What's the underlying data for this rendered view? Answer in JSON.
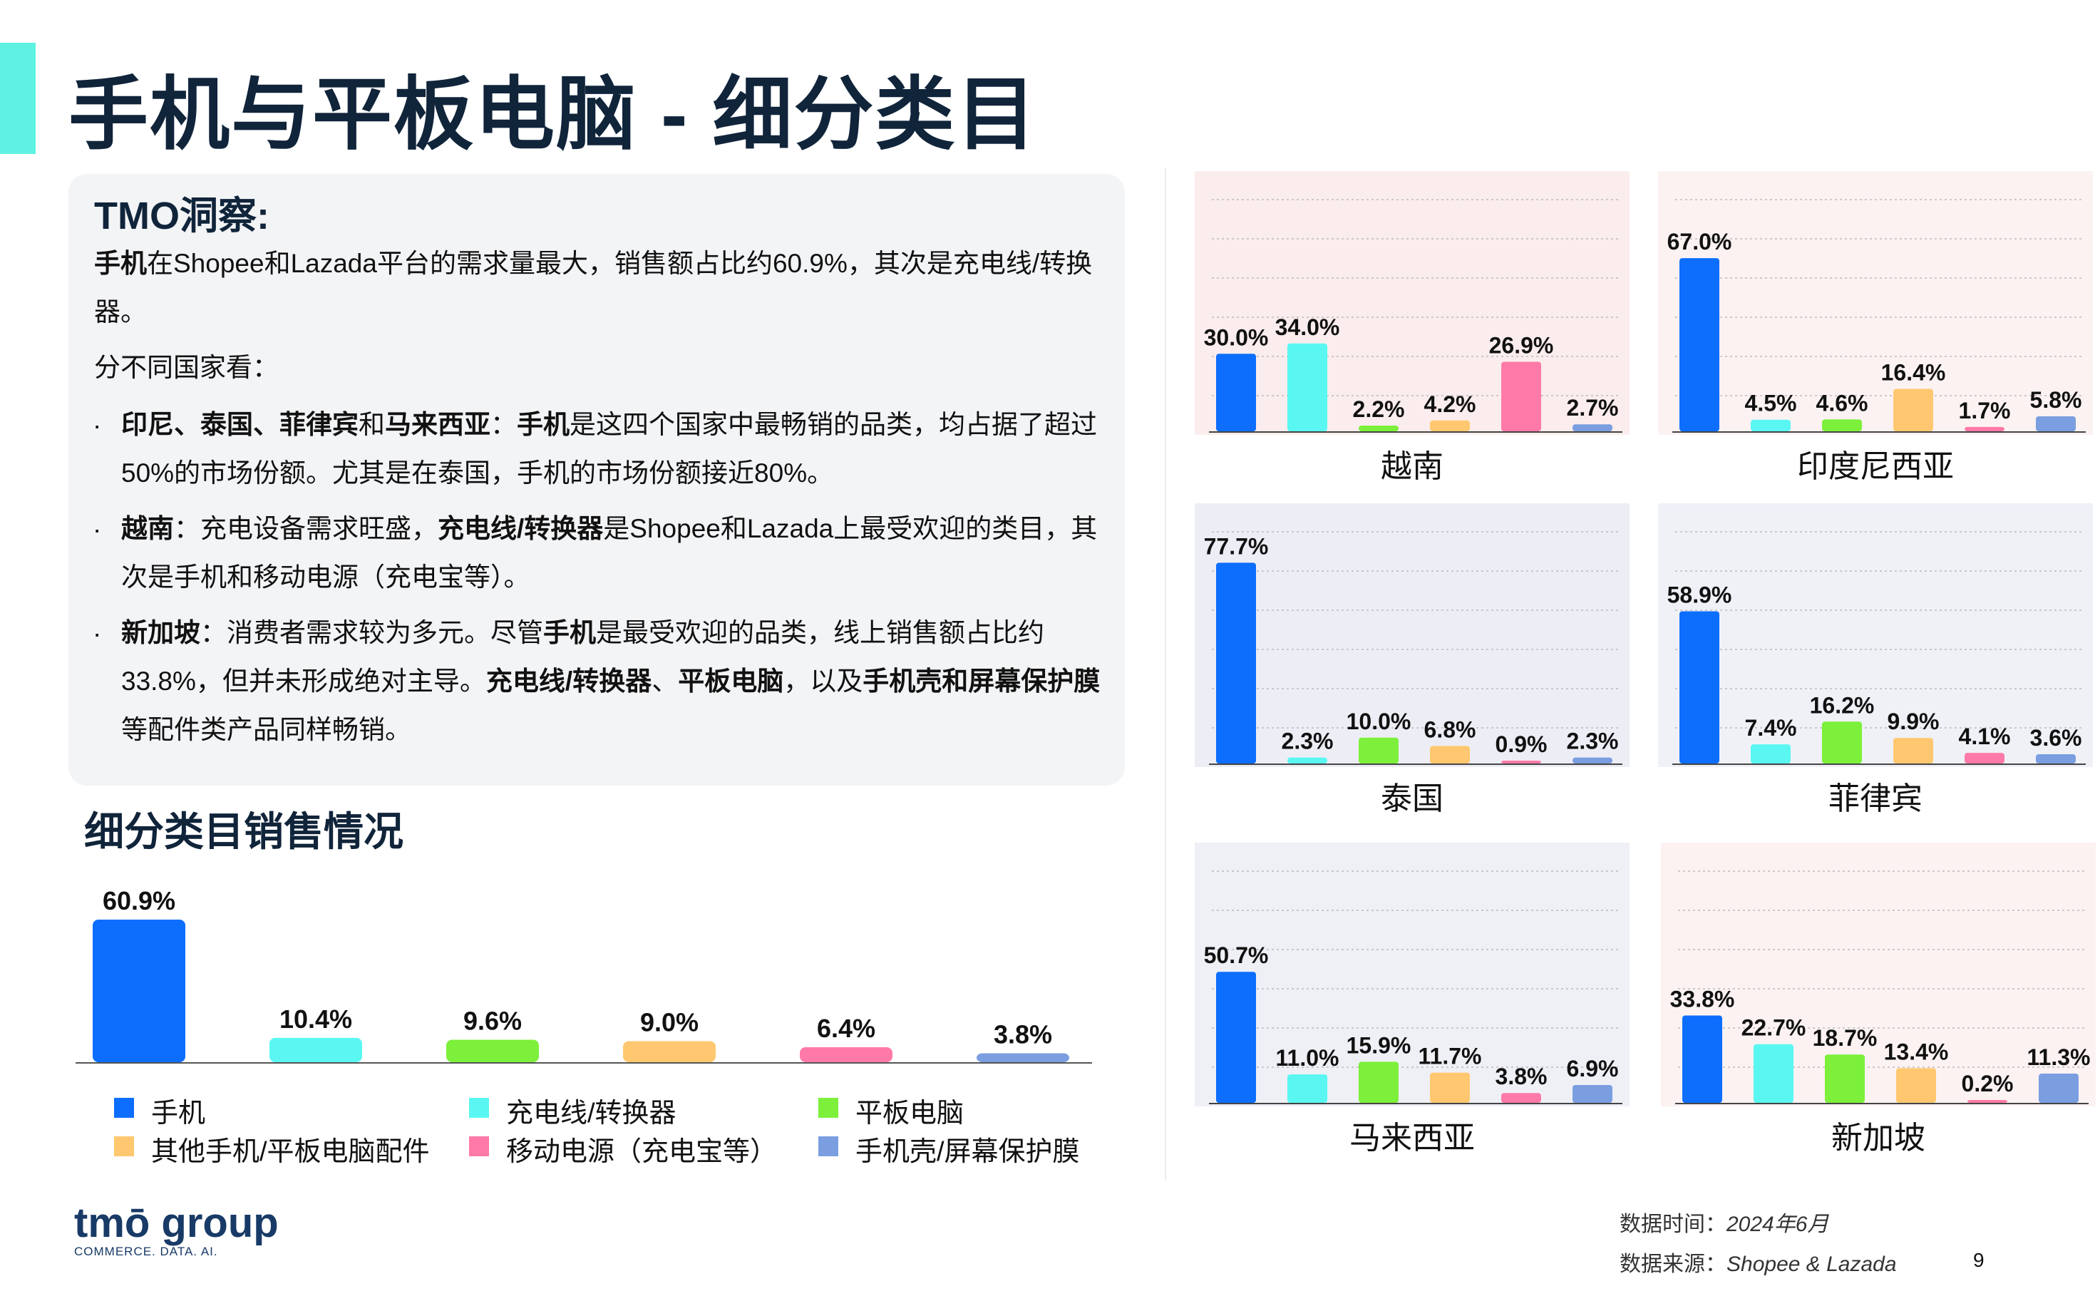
{
  "title": "手机与平板电脑 - 细分类目",
  "insight": {
    "heading": "TMO洞察:",
    "intro_bold": "手机",
    "intro_rest": "在Shopee和Lazada平台的需求量最大，销售额占比约60.9%，其次是充电线/转换器。",
    "by_country": "分不同国家看：",
    "bullets": [
      {
        "lead": "印尼、泰国、菲律宾",
        "mid1": "和",
        "lead2": "马来西亚",
        "sep": "：",
        "key": "手机",
        "rest": "是这四个国家中最畅销的品类，均占据了超过50%的市场份额。尤其是在泰国，手机的市场份额接近80%。"
      },
      {
        "lead": "越南",
        "sep": "：充电设备需求旺盛，",
        "key": "充电线/转换器",
        "rest": "是Shopee和Lazada上最受欢迎的类目，其次是手机和移动电源（充电宝等）。"
      },
      {
        "lead": "新加坡",
        "sep": "：消费者需求较为多元。尽管",
        "key": "手机",
        "mid": "是最受欢迎的品类，线上销售额占比约33.8%，但并未形成绝对主导。",
        "key2": "充电线/转换器",
        "sep2": "、",
        "key3": "平板电脑",
        "mid2": "，以及",
        "key4": "手机壳和屏幕保护膜",
        "rest": "等配件类产品同样畅销。"
      }
    ]
  },
  "section_title": "细分类目销售情况",
  "legend": [
    {
      "label": "手机",
      "color": "#0d6efd"
    },
    {
      "label": "充电线/转换器",
      "color": "#5af7f2"
    },
    {
      "label": "平板电脑",
      "color": "#7cf03a"
    },
    {
      "label": "其他手机/平板电脑配件",
      "color": "#ffc870"
    },
    {
      "label": "移动电源（充电宝等）",
      "color": "#ff7aa8"
    },
    {
      "label": "手机壳/屏幕保护膜",
      "color": "#7a9ee0"
    }
  ],
  "chart_data": [
    {
      "type": "bar",
      "name": "总体",
      "categories": [
        "手机",
        "充电线/转换器",
        "平板电脑",
        "其他手机/平板电脑配件",
        "移动电源（充电宝等）",
        "手机壳/屏幕保护膜"
      ],
      "values": [
        60.9,
        10.4,
        9.6,
        9.0,
        6.4,
        3.8
      ],
      "labels": [
        "60.9%",
        "10.4%",
        "9.6%",
        "9.0%",
        "6.4%",
        "3.8%"
      ]
    },
    {
      "type": "bar",
      "country": "越南",
      "categories": [
        "手机",
        "充电线/转换器",
        "平板电脑",
        "其他手机/平板电脑配件",
        "移动电源（充电宝等）",
        "手机壳/屏幕保护膜"
      ],
      "values": [
        30.0,
        34.0,
        2.2,
        4.2,
        26.9,
        2.7
      ],
      "labels": [
        "30.0%",
        "34.0%",
        "2.2%",
        "4.2%",
        "26.9%",
        "2.7%"
      ]
    },
    {
      "type": "bar",
      "country": "印度尼西亚",
      "categories": [
        "手机",
        "充电线/转换器",
        "平板电脑",
        "其他手机/平板电脑配件",
        "移动电源（充电宝等）",
        "手机壳/屏幕保护膜"
      ],
      "values": [
        67.0,
        4.5,
        4.6,
        16.4,
        1.7,
        5.8
      ],
      "labels": [
        "67.0%",
        "4.5%",
        "4.6%",
        "16.4%",
        "1.7%",
        "5.8%"
      ]
    },
    {
      "type": "bar",
      "country": "泰国",
      "categories": [
        "手机",
        "充电线/转换器",
        "平板电脑",
        "其他手机/平板电脑配件",
        "移动电源（充电宝等）",
        "手机壳/屏幕保护膜"
      ],
      "values": [
        77.7,
        2.3,
        10.0,
        6.8,
        0.9,
        2.3
      ],
      "labels": [
        "77.7%",
        "2.3%",
        "10.0%",
        "6.8%",
        "0.9%",
        "2.3%"
      ]
    },
    {
      "type": "bar",
      "country": "菲律宾",
      "categories": [
        "手机",
        "充电线/转换器",
        "平板电脑",
        "其他手机/平板电脑配件",
        "移动电源（充电宝等）",
        "手机壳/屏幕保护膜"
      ],
      "values": [
        58.9,
        7.4,
        16.2,
        9.9,
        4.1,
        3.6
      ],
      "labels": [
        "58.9%",
        "7.4%",
        "16.2%",
        "9.9%",
        "4.1%",
        "3.6%"
      ]
    },
    {
      "type": "bar",
      "country": "马来西亚",
      "categories": [
        "手机",
        "充电线/转换器",
        "平板电脑",
        "其他手机/平板电脑配件",
        "移动电源（充电宝等）",
        "手机壳/屏幕保护膜"
      ],
      "values": [
        50.7,
        11.0,
        15.9,
        11.7,
        3.8,
        6.9
      ],
      "labels": [
        "50.7%",
        "11.0%",
        "15.9%",
        "11.7%",
        "3.8%",
        "6.9%"
      ]
    },
    {
      "type": "bar",
      "country": "新加坡",
      "categories": [
        "手机",
        "充电线/转换器",
        "平板电脑",
        "其他手机/平板电脑配件",
        "移动电源（充电宝等）",
        "手机壳/屏幕保护膜"
      ],
      "values": [
        33.8,
        22.7,
        18.7,
        13.4,
        0.2,
        11.3
      ],
      "labels": [
        "33.8%",
        "22.7%",
        "18.7%",
        "13.4%",
        "0.2%",
        "11.3%"
      ]
    }
  ],
  "footer": {
    "time_label": "数据时间：",
    "time_value": "2024年6月",
    "source_label": "数据来源：",
    "source_value": "Shopee & Lazada",
    "page": "9"
  },
  "logo": {
    "name": "tmō group",
    "tagline": "COMMERCE. DATA. AI."
  }
}
